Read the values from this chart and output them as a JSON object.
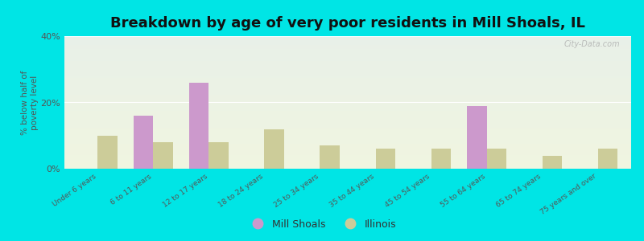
{
  "title": "Breakdown by age of very poor residents in Mill Shoals, IL",
  "categories": [
    "Under 6 years",
    "6 to 11 years",
    "12 to 17 years",
    "18 to 24 years",
    "25 to 34 years",
    "35 to 44 years",
    "45 to 54 years",
    "55 to 64 years",
    "65 to 74 years",
    "75 years and over"
  ],
  "mill_shoals": [
    0,
    16.0,
    26.0,
    0,
    0,
    0,
    0,
    19.0,
    0,
    0
  ],
  "illinois": [
    10.0,
    8.0,
    8.0,
    12.0,
    7.0,
    6.0,
    6.0,
    6.0,
    4.0,
    6.0
  ],
  "mill_shoals_color": "#cc99cc",
  "illinois_color": "#cccc99",
  "background_outer": "#00e5e5",
  "background_plot_top": "#e8f0e8",
  "background_plot_bottom": "#f0f5e0",
  "ylim": [
    0,
    40
  ],
  "yticks": [
    0,
    20,
    40
  ],
  "ytick_labels": [
    "0%",
    "20%",
    "40%"
  ],
  "ylabel": "% below half of\npoverty level",
  "bar_width": 0.35,
  "title_fontsize": 13,
  "watermark": "City-Data.com"
}
